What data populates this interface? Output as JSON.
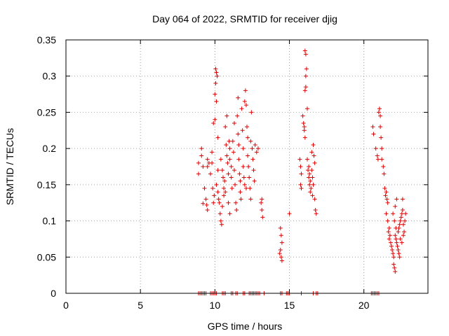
{
  "chart_data": {
    "type": "scatter",
    "title": "Day 064 of 2022, SRMTID for receiver djig",
    "xlabel": "GPS time / hours",
    "ylabel": "SRMTID / TECUs",
    "xlim": [
      0,
      24.3
    ],
    "ylim": [
      0,
      0.35
    ],
    "xticks": [
      0,
      5,
      10,
      15,
      20
    ],
    "xtick_labels": [
      "0",
      "5",
      "10",
      "15",
      "20"
    ],
    "yticks": [
      0,
      0.05,
      0.1,
      0.15,
      0.2,
      0.25,
      0.3,
      0.35
    ],
    "ytick_labels": [
      "0",
      "0.05",
      "0.1",
      "0.15",
      "0.2",
      "0.25",
      "0.3",
      "0.35"
    ],
    "grid": true,
    "marker": "plus",
    "color": "#dd0000",
    "series": [
      {
        "points": [
          [
            8.9,
            0.18
          ],
          [
            8.9,
            0.165
          ],
          [
            9.1,
            0.2
          ],
          [
            9.1,
            0.19
          ],
          [
            9.2,
            0.175
          ],
          [
            9.2,
            0.124
          ],
          [
            9.3,
            0.145
          ],
          [
            9.5,
            0.185
          ],
          [
            9.5,
            0.175
          ],
          [
            9.4,
            0.13
          ],
          [
            9.45,
            0.122
          ],
          [
            9.5,
            0.115
          ],
          [
            9.6,
            0.18
          ],
          [
            9.7,
            0.165
          ],
          [
            9.8,
            0.195
          ],
          [
            9.8,
            0.18
          ],
          [
            9.85,
            0.145
          ],
          [
            9.9,
            0.125
          ],
          [
            9.95,
            0.135
          ],
          [
            9.9,
            0.235
          ],
          [
            10.0,
            0.24
          ],
          [
            10.05,
            0.31
          ],
          [
            10.1,
            0.305
          ],
          [
            10.15,
            0.3
          ],
          [
            10.05,
            0.29
          ],
          [
            10.0,
            0.275
          ],
          [
            10.1,
            0.265
          ],
          [
            10.1,
            0.15
          ],
          [
            10.2,
            0.17
          ],
          [
            10.2,
            0.14
          ],
          [
            10.25,
            0.13
          ],
          [
            10.3,
            0.125
          ],
          [
            10.35,
            0.11
          ],
          [
            10.4,
            0.1
          ],
          [
            10.45,
            0.095
          ],
          [
            10.5,
            0.12
          ],
          [
            10.4,
            0.185
          ],
          [
            10.5,
            0.17
          ],
          [
            10.55,
            0.16
          ],
          [
            10.6,
            0.145
          ],
          [
            10.6,
            0.135
          ],
          [
            10.65,
            0.155
          ],
          [
            10.7,
            0.14
          ],
          [
            10.75,
            0.205
          ],
          [
            10.8,
            0.19
          ],
          [
            10.85,
            0.18
          ],
          [
            10.9,
            0.165
          ],
          [
            10.95,
            0.21
          ],
          [
            11.0,
            0.2
          ],
          [
            11.0,
            0.185
          ],
          [
            11.1,
            0.175
          ],
          [
            11.1,
            0.16
          ],
          [
            11.15,
            0.145
          ],
          [
            11.2,
            0.21
          ],
          [
            11.25,
            0.195
          ],
          [
            11.3,
            0.17
          ],
          [
            11.35,
            0.15
          ],
          [
            11.4,
            0.125
          ],
          [
            11.45,
            0.115
          ],
          [
            11.5,
            0.245
          ],
          [
            11.55,
            0.22
          ],
          [
            11.6,
            0.205
          ],
          [
            11.6,
            0.185
          ],
          [
            11.65,
            0.165
          ],
          [
            11.7,
            0.14
          ],
          [
            11.75,
            0.13
          ],
          [
            11.8,
            0.255
          ],
          [
            11.85,
            0.225
          ],
          [
            11.9,
            0.2
          ],
          [
            11.9,
            0.175
          ],
          [
            11.95,
            0.16
          ],
          [
            12.0,
            0.15
          ],
          [
            12.0,
            0.265
          ],
          [
            12.05,
            0.28
          ],
          [
            12.1,
            0.26
          ],
          [
            12.15,
            0.23
          ],
          [
            12.2,
            0.215
          ],
          [
            12.2,
            0.19
          ],
          [
            12.25,
            0.175
          ],
          [
            12.3,
            0.16
          ],
          [
            12.35,
            0.145
          ],
          [
            12.4,
            0.21
          ],
          [
            12.5,
            0.2
          ],
          [
            12.55,
            0.185
          ],
          [
            12.6,
            0.17
          ],
          [
            12.65,
            0.155
          ],
          [
            12.7,
            0.205
          ],
          [
            12.8,
            0.195
          ],
          [
            12.9,
            0.2
          ],
          [
            10.7,
            0.23
          ],
          [
            10.9,
            0.125
          ],
          [
            11.3,
            0.235
          ],
          [
            11.7,
            0.155
          ],
          [
            12.1,
            0.145
          ],
          [
            12.4,
            0.13
          ],
          [
            11.0,
            0.11
          ],
          [
            10.2,
            0.215
          ],
          [
            10.8,
            0.245
          ],
          [
            11.55,
            0.27
          ],
          [
            12.45,
            0.25
          ],
          [
            13.1,
            0.125
          ],
          [
            13.15,
            0.115
          ],
          [
            13.2,
            0.105
          ],
          [
            13.15,
            0.13
          ],
          [
            14.4,
            0.09
          ],
          [
            14.45,
            0.08
          ],
          [
            14.5,
            0.07
          ],
          [
            14.4,
            0.06
          ],
          [
            14.45,
            0.05
          ],
          [
            14.5,
            0.045
          ],
          [
            14.35,
            0.055
          ],
          [
            15.0,
            0.11
          ],
          [
            15.7,
            0.185
          ],
          [
            15.75,
            0.175
          ],
          [
            15.8,
            0.165
          ],
          [
            15.75,
            0.15
          ],
          [
            15.8,
            0.145
          ],
          [
            15.9,
            0.245
          ],
          [
            15.95,
            0.235
          ],
          [
            16.0,
            0.23
          ],
          [
            16.0,
            0.225
          ],
          [
            16.05,
            0.215
          ],
          [
            16.05,
            0.28
          ],
          [
            16.1,
            0.285
          ],
          [
            16.05,
            0.335
          ],
          [
            16.1,
            0.33
          ],
          [
            16.15,
            0.31
          ],
          [
            16.1,
            0.3
          ],
          [
            16.2,
            0.255
          ],
          [
            16.2,
            0.185
          ],
          [
            16.25,
            0.17
          ],
          [
            16.3,
            0.16
          ],
          [
            16.35,
            0.15
          ],
          [
            16.4,
            0.14
          ],
          [
            16.35,
            0.165
          ],
          [
            16.4,
            0.155
          ],
          [
            16.45,
            0.145
          ],
          [
            16.5,
            0.17
          ],
          [
            16.55,
            0.16
          ],
          [
            16.6,
            0.15
          ],
          [
            16.5,
            0.195
          ],
          [
            16.6,
            0.205
          ],
          [
            16.65,
            0.19
          ],
          [
            16.7,
            0.18
          ],
          [
            16.75,
            0.115
          ],
          [
            16.7,
            0.13
          ],
          [
            16.8,
            0.11
          ],
          [
            16.55,
            0.135
          ],
          [
            16.3,
            0.175
          ],
          [
            20.6,
            0.23
          ],
          [
            20.65,
            0.22
          ],
          [
            20.8,
            0.2
          ],
          [
            20.9,
            0.19
          ],
          [
            20.95,
            0.185
          ],
          [
            21.0,
            0.25
          ],
          [
            21.05,
            0.255
          ],
          [
            21.1,
            0.245
          ],
          [
            21.1,
            0.23
          ],
          [
            21.15,
            0.215
          ],
          [
            21.2,
            0.2
          ],
          [
            21.2,
            0.185
          ],
          [
            21.3,
            0.175
          ],
          [
            21.35,
            0.165
          ],
          [
            21.4,
            0.145
          ],
          [
            21.45,
            0.135
          ],
          [
            21.5,
            0.14
          ],
          [
            21.55,
            0.13
          ],
          [
            21.6,
            0.125
          ],
          [
            21.5,
            0.11
          ],
          [
            21.6,
            0.1
          ],
          [
            21.7,
            0.09
          ],
          [
            21.65,
            0.085
          ],
          [
            21.75,
            0.08
          ],
          [
            21.7,
            0.075
          ],
          [
            21.8,
            0.07
          ],
          [
            21.85,
            0.065
          ],
          [
            21.9,
            0.06
          ],
          [
            21.95,
            0.055
          ],
          [
            22.0,
            0.05
          ],
          [
            22.0,
            0.04
          ],
          [
            22.05,
            0.035
          ],
          [
            22.1,
            0.03
          ],
          [
            22.1,
            0.08
          ],
          [
            22.15,
            0.075
          ],
          [
            22.2,
            0.07
          ],
          [
            22.25,
            0.065
          ],
          [
            22.3,
            0.06
          ],
          [
            22.35,
            0.055
          ],
          [
            22.4,
            0.05
          ],
          [
            22.3,
            0.085
          ],
          [
            22.35,
            0.09
          ],
          [
            22.4,
            0.095
          ],
          [
            22.45,
            0.1
          ],
          [
            22.5,
            0.105
          ],
          [
            22.55,
            0.11
          ],
          [
            22.6,
            0.115
          ],
          [
            22.65,
            0.095
          ],
          [
            22.7,
            0.085
          ],
          [
            22.75,
            0.1
          ],
          [
            22.8,
            0.11
          ],
          [
            22.6,
            0.13
          ],
          [
            22.2,
            0.13
          ],
          [
            22.1,
            0.12
          ],
          [
            21.95,
            0.11
          ],
          [
            22.05,
            0.1
          ],
          [
            22.15,
            0.09
          ],
          [
            22.45,
            0.075
          ],
          [
            22.55,
            0.07
          ],
          [
            22.65,
            0.08
          ]
        ]
      },
      {
        "points": [
          [
            8.9,
            0
          ],
          [
            9.0,
            0
          ],
          [
            9.1,
            0
          ],
          [
            9.2,
            0
          ],
          [
            9.3,
            0
          ],
          [
            9.4,
            0
          ],
          [
            9.7,
            0
          ],
          [
            9.8,
            0
          ],
          [
            9.9,
            0
          ],
          [
            10.0,
            0
          ],
          [
            10.1,
            0
          ],
          [
            10.5,
            0
          ],
          [
            10.6,
            0
          ],
          [
            10.7,
            0
          ],
          [
            11.1,
            0
          ],
          [
            11.2,
            0
          ],
          [
            11.4,
            0
          ],
          [
            11.5,
            0
          ],
          [
            11.9,
            0
          ],
          [
            12.0,
            0
          ],
          [
            12.3,
            0
          ],
          [
            12.4,
            0
          ],
          [
            12.5,
            0
          ],
          [
            12.6,
            0
          ],
          [
            12.7,
            0
          ],
          [
            12.8,
            0
          ],
          [
            12.9,
            0
          ],
          [
            13.0,
            0
          ],
          [
            13.3,
            0
          ],
          [
            14.4,
            0
          ],
          [
            14.5,
            0
          ],
          [
            14.8,
            0
          ],
          [
            14.9,
            0
          ],
          [
            15.0,
            0
          ],
          [
            15.8,
            0
          ],
          [
            16.6,
            0
          ],
          [
            16.8,
            0
          ],
          [
            16.9,
            0
          ],
          [
            20.5,
            0
          ],
          [
            20.6,
            0
          ],
          [
            20.7,
            0
          ],
          [
            20.8,
            0
          ],
          [
            20.9,
            0
          ],
          [
            21.0,
            0
          ]
        ]
      }
    ]
  }
}
